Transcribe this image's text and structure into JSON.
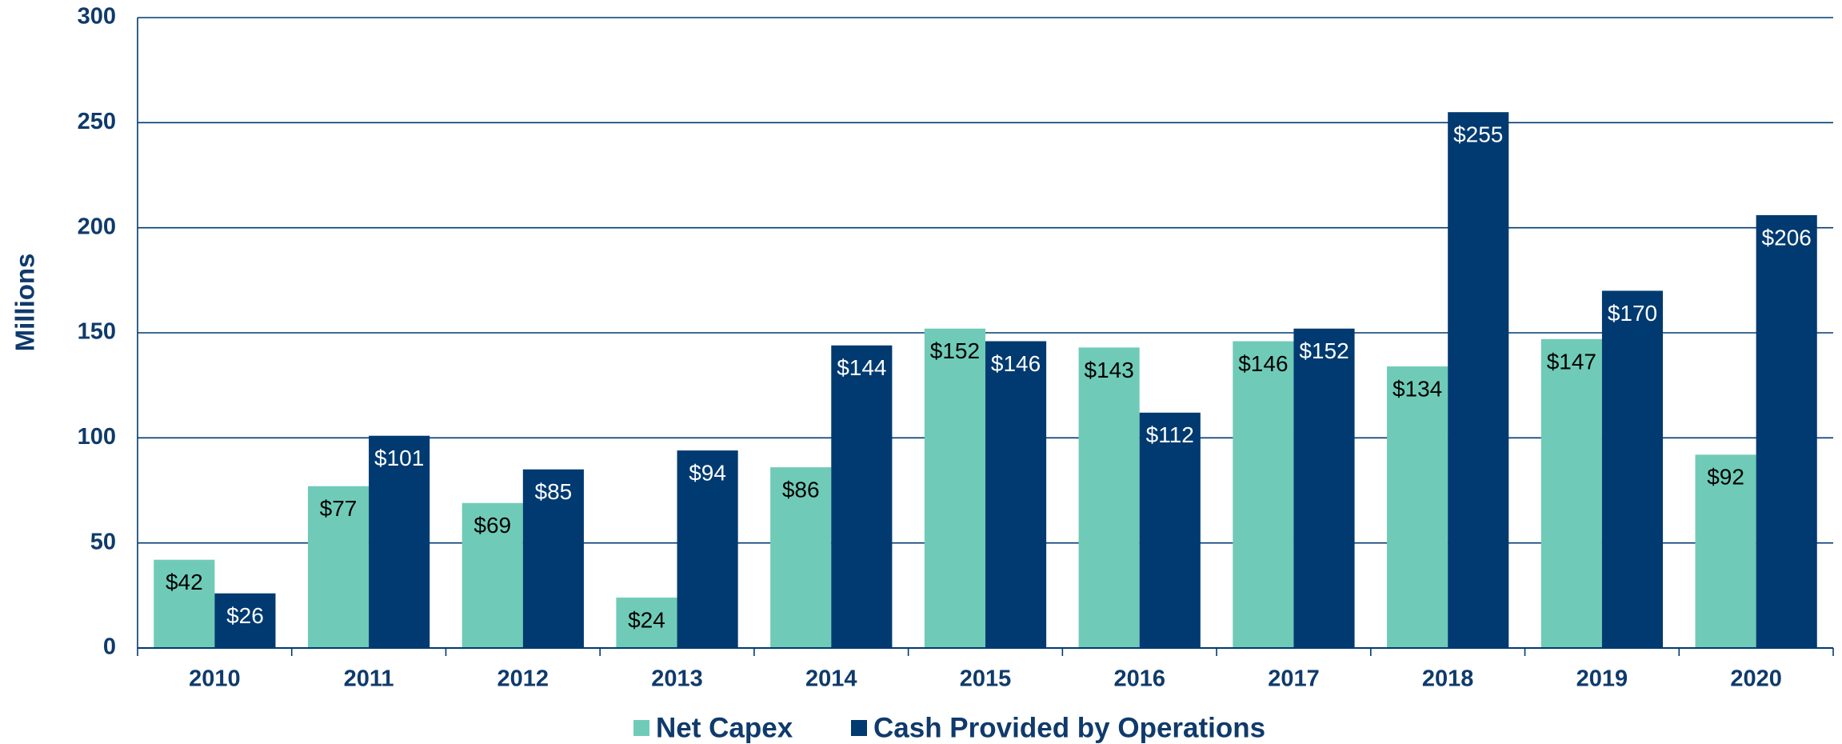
{
  "chart_data": {
    "type": "bar",
    "ylabel": "Millions",
    "categories": [
      "2010",
      "2011",
      "2012",
      "2013",
      "2014",
      "2015",
      "2016",
      "2017",
      "2018",
      "2019",
      "2020"
    ],
    "series": [
      {
        "name": "Net Capex",
        "color": "#6fcbb7",
        "values": [
          42,
          77,
          69,
          24,
          86,
          152,
          143,
          146,
          134,
          147,
          92
        ],
        "value_labels": [
          "$42",
          "$77",
          "$69",
          "$24",
          "$86",
          "$152",
          "$143",
          "$146",
          "$134",
          "$147",
          "$92"
        ]
      },
      {
        "name": "Cash Provided by Operations",
        "color": "#003a70",
        "values": [
          26,
          101,
          85,
          94,
          144,
          146,
          112,
          152,
          255,
          170,
          206
        ],
        "value_labels": [
          "$26",
          "$101",
          "$85",
          "$94",
          "$144",
          "$146",
          "$112",
          "$152",
          "$255",
          "$170",
          "$206"
        ]
      }
    ],
    "ylim": [
      0,
      300
    ],
    "yticks": [
      0,
      50,
      100,
      150,
      200,
      250,
      300
    ],
    "grid": true,
    "legend": "bottom"
  }
}
